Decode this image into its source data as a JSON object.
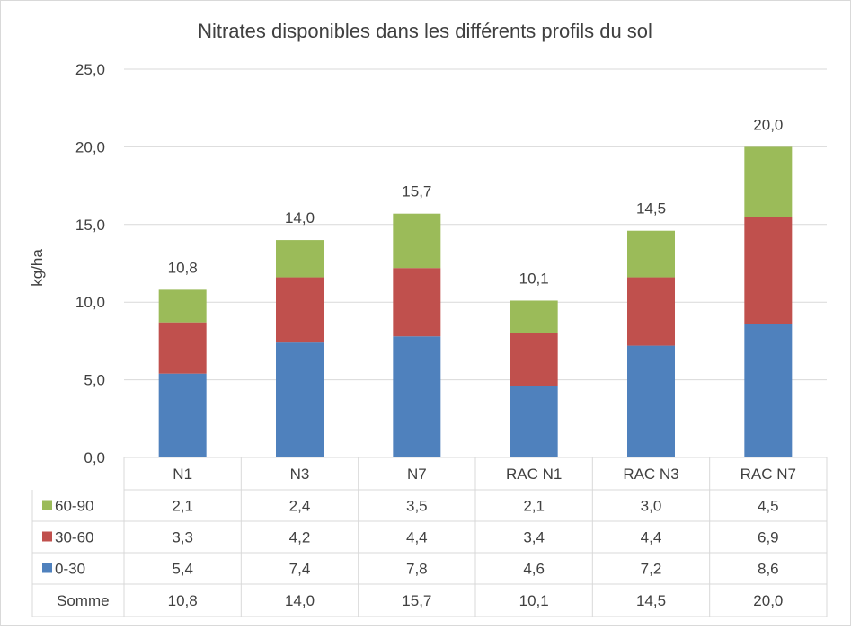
{
  "chart_data": {
    "type": "bar",
    "stacked": true,
    "title": "Nitrates disponibles dans les différents profils du sol",
    "xlabel": "",
    "ylabel": "kg/ha",
    "ylim": [
      0,
      25
    ],
    "yticks": [
      "0,0",
      "5,0",
      "10,0",
      "15,0",
      "20,0",
      "25,0"
    ],
    "grid": true,
    "categories": [
      "N1",
      "N3",
      "N7",
      "RAC N1",
      "RAC N3",
      "RAC N7"
    ],
    "series": [
      {
        "name": "0-30",
        "color": "#4f81bd",
        "values": [
          5.4,
          7.4,
          7.8,
          4.6,
          7.2,
          8.6
        ],
        "labels": [
          "5,4",
          "7,4",
          "7,8",
          "4,6",
          "7,2",
          "8,6"
        ]
      },
      {
        "name": "30-60",
        "color": "#c0504d",
        "values": [
          3.3,
          4.2,
          4.4,
          3.4,
          4.4,
          6.9
        ],
        "labels": [
          "3,3",
          "4,2",
          "4,4",
          "3,4",
          "4,4",
          "6,9"
        ]
      },
      {
        "name": "60-90",
        "color": "#9bbb59",
        "values": [
          2.1,
          2.4,
          3.5,
          2.1,
          3.0,
          4.5
        ],
        "labels": [
          "2,1",
          "2,4",
          "3,5",
          "2,1",
          "3,0",
          "4,5"
        ]
      }
    ],
    "totals": {
      "name": "Somme",
      "values": [
        10.8,
        14.0,
        15.7,
        10.1,
        14.5,
        20.0
      ],
      "labels": [
        "10,8",
        "14,0",
        "15,7",
        "10,1",
        "14,5",
        "20,0"
      ]
    },
    "table_row_order": [
      "60-90",
      "30-60",
      "0-30",
      "Somme"
    ],
    "legend": "data-table"
  }
}
